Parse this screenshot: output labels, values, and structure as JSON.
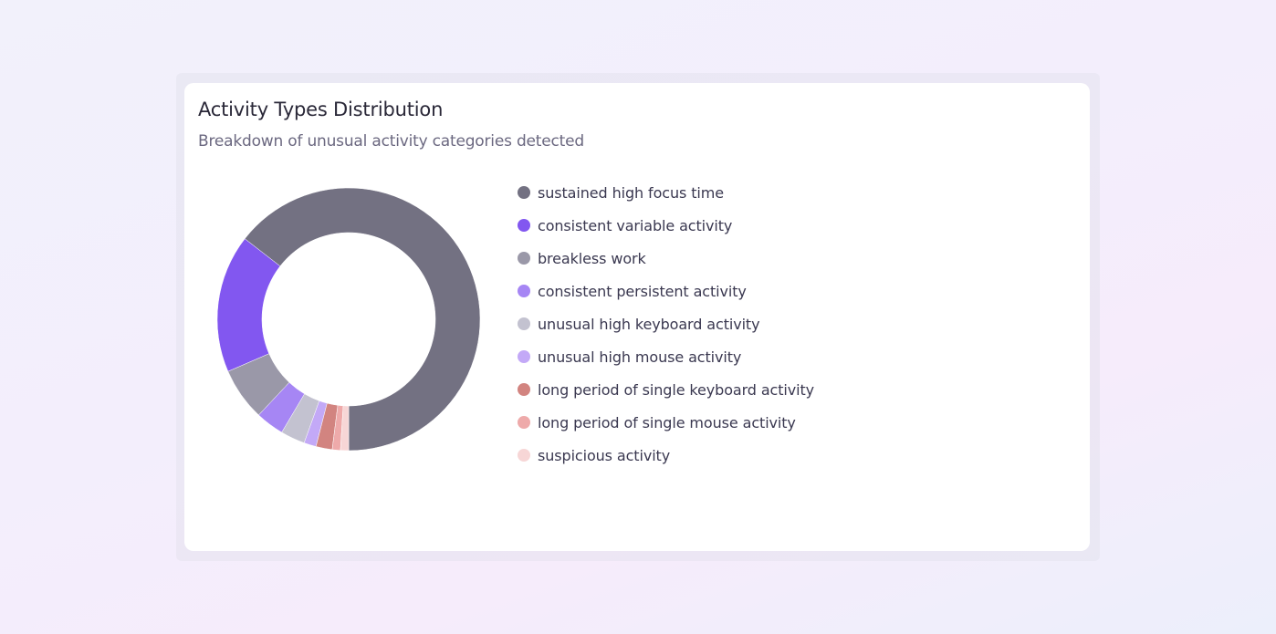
{
  "card": {
    "title": "Activity Types Distribution",
    "subtitle": "Breakdown of unusual activity categories detected"
  },
  "chart_data": {
    "type": "pie",
    "variant": "donut",
    "title": "Activity Types Distribution",
    "subtitle": "Breakdown of unusual activity categories detected",
    "legend_position": "right",
    "start_angle_deg": 90,
    "inner_radius_ratio": 0.66,
    "categories": [
      "sustained high focus time",
      "consistent variable activity",
      "breakless work",
      "consistent persistent activity",
      "unusual high keyboard activity",
      "unusual high mouse activity",
      "long period of single keyboard activity",
      "long period of single mouse activity",
      "suspicious activity"
    ],
    "values": [
      64.5,
      17,
      6.5,
      3.5,
      3,
      1.5,
      2,
      1,
      1
    ],
    "colors": [
      "#737182",
      "#8257f0",
      "#9a98a8",
      "#a686f4",
      "#c3c2d0",
      "#c3a9f7",
      "#d28480",
      "#eeaaaa",
      "#f7d6d6"
    ]
  }
}
